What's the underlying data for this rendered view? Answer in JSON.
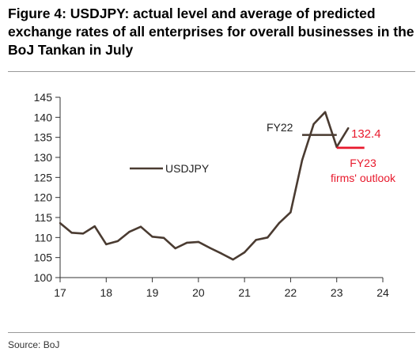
{
  "title": "Figure 4: USDJPY: actual level and average of predicted exchange rates of all enterprises for overall businesses in the BoJ Tankan in July",
  "source": "Source: BoJ",
  "colors": {
    "series": "#4a3b31",
    "forecast": "#e8192c",
    "axis": "#333333"
  },
  "chart_data": {
    "type": "line",
    "title": "",
    "xlabel": "",
    "ylabel": "",
    "xlim": [
      17,
      24
    ],
    "ylim": [
      100,
      145
    ],
    "x_ticks": [
      17,
      18,
      19,
      20,
      21,
      22,
      23,
      24
    ],
    "y_ticks": [
      100,
      105,
      110,
      115,
      120,
      125,
      130,
      135,
      140,
      145
    ],
    "grid": false,
    "legend": "inside-left",
    "series": [
      {
        "name": "USDJPY",
        "x": [
          17.0,
          17.25,
          17.5,
          17.75,
          18.0,
          18.25,
          18.5,
          18.75,
          19.0,
          19.25,
          19.5,
          19.75,
          20.0,
          20.25,
          20.5,
          20.75,
          21.0,
          21.25,
          21.5,
          21.75,
          22.0,
          22.25,
          22.5,
          22.75,
          23.0,
          23.25
        ],
        "y": [
          113.6,
          111.2,
          111.0,
          112.8,
          108.3,
          109.1,
          111.4,
          112.7,
          110.2,
          109.9,
          107.3,
          108.7,
          108.9,
          107.4,
          106.0,
          104.5,
          106.3,
          109.4,
          110.0,
          113.6,
          116.3,
          129.3,
          138.3,
          141.3,
          132.6,
          137.3
        ]
      }
    ],
    "annotations": {
      "fy22_label": "FY22",
      "fy22_level": {
        "x": [
          22.25,
          23.0
        ],
        "y": 135.6
      },
      "fy23_value_label": "132.4",
      "fy23_level": {
        "x": [
          23.0,
          23.6
        ],
        "y": 132.4
      },
      "fy23_label_line1": "FY23",
      "fy23_label_line2": "firms' outlook"
    }
  }
}
